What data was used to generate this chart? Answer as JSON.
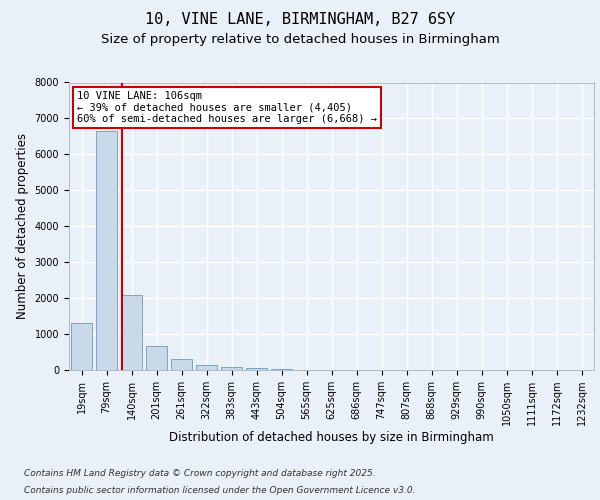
{
  "title_line1": "10, VINE LANE, BIRMINGHAM, B27 6SY",
  "title_line2": "Size of property relative to detached houses in Birmingham",
  "xlabel": "Distribution of detached houses by size in Birmingham",
  "ylabel": "Number of detached properties",
  "categories": [
    "19sqm",
    "79sqm",
    "140sqm",
    "201sqm",
    "261sqm",
    "322sqm",
    "383sqm",
    "443sqm",
    "504sqm",
    "565sqm",
    "625sqm",
    "686sqm",
    "747sqm",
    "807sqm",
    "868sqm",
    "929sqm",
    "990sqm",
    "1050sqm",
    "1111sqm",
    "1172sqm",
    "1232sqm"
  ],
  "values": [
    1320,
    6640,
    2090,
    680,
    295,
    140,
    80,
    45,
    15,
    8,
    4,
    2,
    1,
    1,
    0,
    0,
    0,
    0,
    0,
    0,
    0
  ],
  "bar_color": "#c9d9e8",
  "bar_edge_color": "#5a8ab0",
  "vline_color": "#cc0000",
  "annotation_box_text": "10 VINE LANE: 106sqm\n← 39% of detached houses are smaller (4,405)\n60% of semi-detached houses are larger (6,668) →",
  "annotation_box_color": "#cc0000",
  "annotation_box_facecolor": "white",
  "ylim": [
    0,
    8000
  ],
  "yticks": [
    0,
    1000,
    2000,
    3000,
    4000,
    5000,
    6000,
    7000,
    8000
  ],
  "background_color": "#eaf0f8",
  "plot_bg_color": "#eaf0f8",
  "grid_color": "white",
  "footer_line1": "Contains HM Land Registry data © Crown copyright and database right 2025.",
  "footer_line2": "Contains public sector information licensed under the Open Government Licence v3.0.",
  "title_fontsize": 11,
  "subtitle_fontsize": 9.5,
  "axis_label_fontsize": 8.5,
  "tick_fontsize": 7,
  "footer_fontsize": 6.5,
  "annot_fontsize": 7.5
}
